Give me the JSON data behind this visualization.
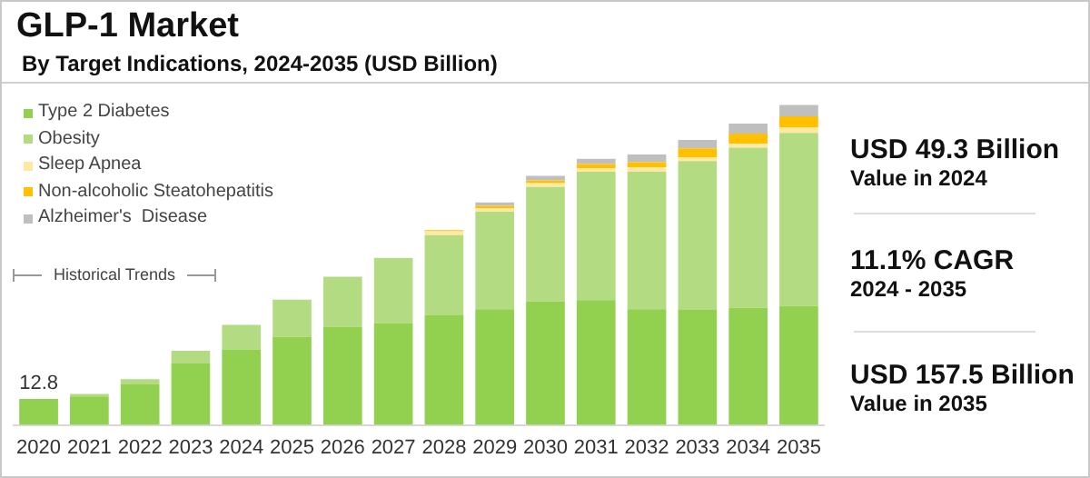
{
  "chart_data": {
    "type": "bar",
    "title": "GLP-1 Market",
    "subtitle": "By Target Indications, 2024-2035 (USD Billion)",
    "categories": [
      "2020",
      "2021",
      "2022",
      "2023",
      "2024",
      "2025",
      "2026",
      "2027",
      "2028",
      "2029",
      "2030",
      "2031",
      "2032",
      "2033",
      "2034",
      "2035"
    ],
    "stacked": true,
    "legend": "top left",
    "tick_labels": "x",
    "series": [
      {
        "name": "Type 2 Diabetes",
        "color": "#92d050",
        "values": [
          12.8,
          14.0,
          20.0,
          30.2,
          37.2,
          43.3,
          48.4,
          50.2,
          54.0,
          57.0,
          60.8,
          61.4,
          57.0,
          56.7,
          57.6,
          58.6
        ],
        "value_labels": [
          "12.8",
          null,
          null,
          null,
          null,
          null,
          null,
          null,
          null,
          null,
          null,
          null,
          null,
          null,
          null,
          null
        ]
      },
      {
        "name": "Obesity",
        "color": "#b3dc82",
        "values": [
          null,
          1.3,
          2.5,
          6.3,
          12.1,
          18.4,
          24.6,
          32.1,
          39.5,
          48.0,
          56.4,
          63.3,
          67.7,
          73.2,
          78.9,
          85.2
        ]
      },
      {
        "name": "Sleep Apnea",
        "color": "#fde9a0",
        "values": [
          null,
          null,
          null,
          null,
          null,
          null,
          null,
          null,
          1.9,
          1.6,
          1.9,
          1.6,
          2.2,
          1.9,
          1.9,
          2.5
        ]
      },
      {
        "name": "Non-alcoholic Steatohepatitis",
        "color": "#ffc000",
        "values": [
          null,
          null,
          null,
          null,
          null,
          null,
          null,
          null,
          0.5,
          1.3,
          1.3,
          2.2,
          2.5,
          4.4,
          5.0,
          5.7
        ]
      },
      {
        "name": "Alzheimer's  Disease",
        "color": "#bfbfbf",
        "values": [
          null,
          null,
          null,
          null,
          null,
          null,
          null,
          null,
          null,
          1.6,
          2.2,
          2.5,
          3.8,
          4.1,
          5.0,
          5.5
        ]
      }
    ],
    "annotations": [
      "Historical Trends",
      "USD 49.3 Billion",
      "Value in 2024",
      "11.1% CAGR",
      "2024 - 2035",
      "USD 157.5 Billion",
      "Value in 2035"
    ]
  }
}
